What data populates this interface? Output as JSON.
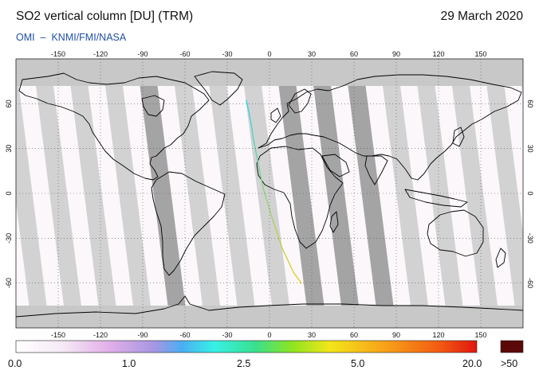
{
  "header": {
    "title": "SO2 vertical column [DU] (TRM)",
    "date": "29 March 2020",
    "credit": "OMI  –  KNMI/FMI/NASA"
  },
  "map": {
    "projection": "equirectangular",
    "lon_range": [
      -180,
      180
    ],
    "lat_range": [
      -90,
      90
    ],
    "lon_ticks": [
      "-150",
      "-120",
      "-90",
      "-60",
      "-30",
      "0",
      "30",
      "60",
      "90",
      "120",
      "150"
    ],
    "lat_ticks": [
      "60",
      "30",
      "0",
      "-30",
      "-60"
    ],
    "colors": {
      "polar_no_data": "#c8c8c8",
      "swath_gap": "#d2d2d2",
      "swath_gap_dark": "#a4a4a4",
      "retrieval": "#fbf7fb",
      "coastline": "#000000",
      "grid": "#555555"
    },
    "feature": {
      "name": "ship track",
      "color_start": "#31d3f0",
      "color_end": "#e8d020"
    }
  },
  "colorbar": {
    "labels": [
      "0.0",
      "1.0",
      "2.5",
      "5.0",
      "20.0",
      ">50"
    ],
    "stops": [
      {
        "offset": 0.0,
        "color": "#ffffff"
      },
      {
        "offset": 0.1,
        "color": "#f6eaf6"
      },
      {
        "offset": 0.2,
        "color": "#e2b0e8"
      },
      {
        "offset": 0.3,
        "color": "#a796e2"
      },
      {
        "offset": 0.36,
        "color": "#4aaef2"
      },
      {
        "offset": 0.43,
        "color": "#37f0e6"
      },
      {
        "offset": 0.52,
        "color": "#39e08e"
      },
      {
        "offset": 0.6,
        "color": "#8ee420"
      },
      {
        "offset": 0.68,
        "color": "#f2e619"
      },
      {
        "offset": 0.8,
        "color": "#f7a219"
      },
      {
        "offset": 0.92,
        "color": "#f25a11"
      },
      {
        "offset": 1.0,
        "color": "#e01710"
      }
    ],
    "overflow_color": "#5a0808"
  }
}
